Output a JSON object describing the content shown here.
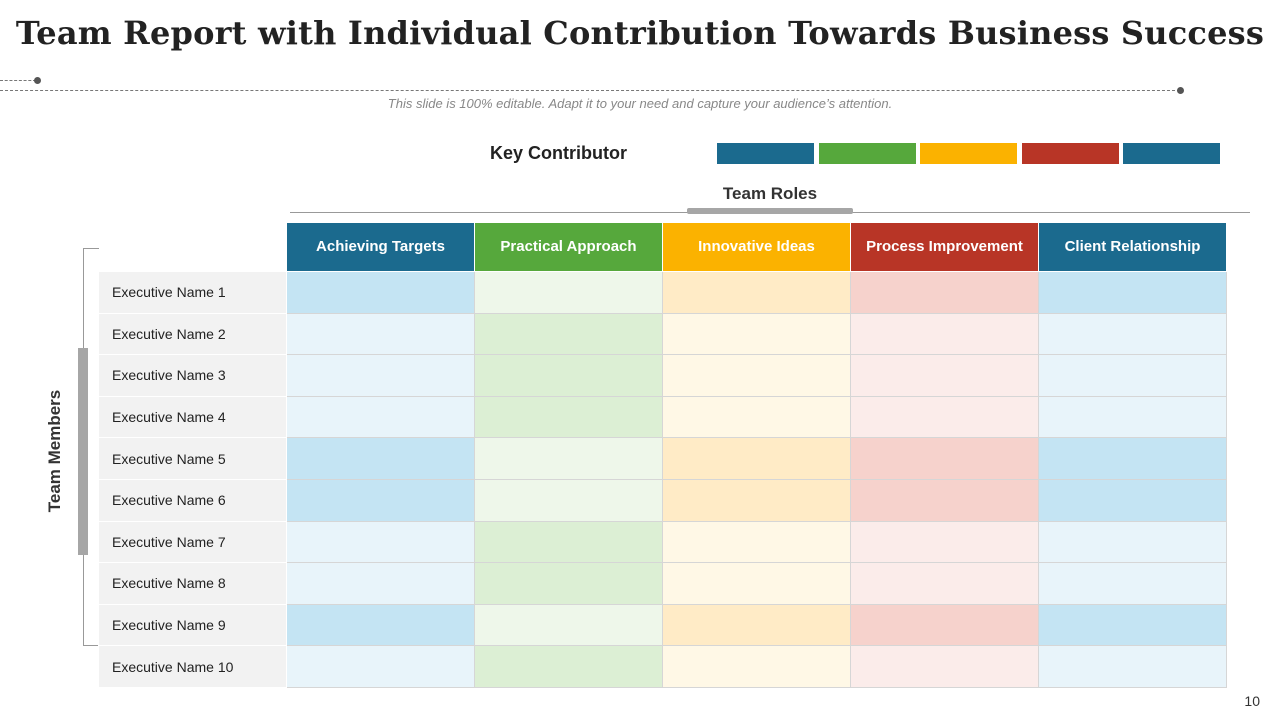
{
  "title": "Team Report with Individual Contribution Towards Business Success",
  "subtitle": "This slide is 100% editable. Adapt it to your need and capture your audience’s attention.",
  "key_contributor_label": "Key Contributor",
  "key_swatches": [
    "#1b6a8e",
    "#56a83c",
    "#fbb200",
    "#b83526",
    "#1b6a8e"
  ],
  "team_roles_label": "Team Roles",
  "team_members_label": "Team Members",
  "columns": [
    {
      "label": "Achieving Targets",
      "color": "#1b6a8e",
      "light": "#e8f4fa",
      "dark": "#c4e4f3"
    },
    {
      "label": "Practical Approach",
      "color": "#56a83c",
      "light": "#eef7ea",
      "dark": "#dcefd4"
    },
    {
      "label": "Innovative Ideas",
      "color": "#fbb200",
      "light": "#fff8e6",
      "dark": "#ffebc6"
    },
    {
      "label": "Process Improvement",
      "color": "#b83526",
      "light": "#fbecea",
      "dark": "#f6d2cc"
    },
    {
      "label": "Client Relationship",
      "color": "#1b6a8e",
      "light": "#e8f4fa",
      "dark": "#c4e4f3"
    }
  ],
  "rows": [
    {
      "name": "Executive Name 1",
      "key": [
        true,
        false,
        true,
        true,
        true
      ]
    },
    {
      "name": "Executive Name 2",
      "key": [
        false,
        true,
        false,
        false,
        false
      ]
    },
    {
      "name": "Executive Name 3",
      "key": [
        false,
        true,
        false,
        false,
        false
      ]
    },
    {
      "name": "Executive Name 4",
      "key": [
        false,
        true,
        false,
        false,
        false
      ]
    },
    {
      "name": "Executive Name 5",
      "key": [
        true,
        false,
        true,
        true,
        true
      ]
    },
    {
      "name": "Executive Name 6",
      "key": [
        true,
        false,
        true,
        true,
        true
      ]
    },
    {
      "name": "Executive Name 7",
      "key": [
        false,
        true,
        false,
        false,
        false
      ]
    },
    {
      "name": "Executive Name 8",
      "key": [
        false,
        true,
        false,
        false,
        false
      ]
    },
    {
      "name": "Executive Name 9",
      "key": [
        true,
        false,
        true,
        true,
        true
      ]
    },
    {
      "name": "Executive Name 10",
      "key": [
        false,
        true,
        false,
        false,
        false
      ]
    }
  ],
  "page_number": "10"
}
